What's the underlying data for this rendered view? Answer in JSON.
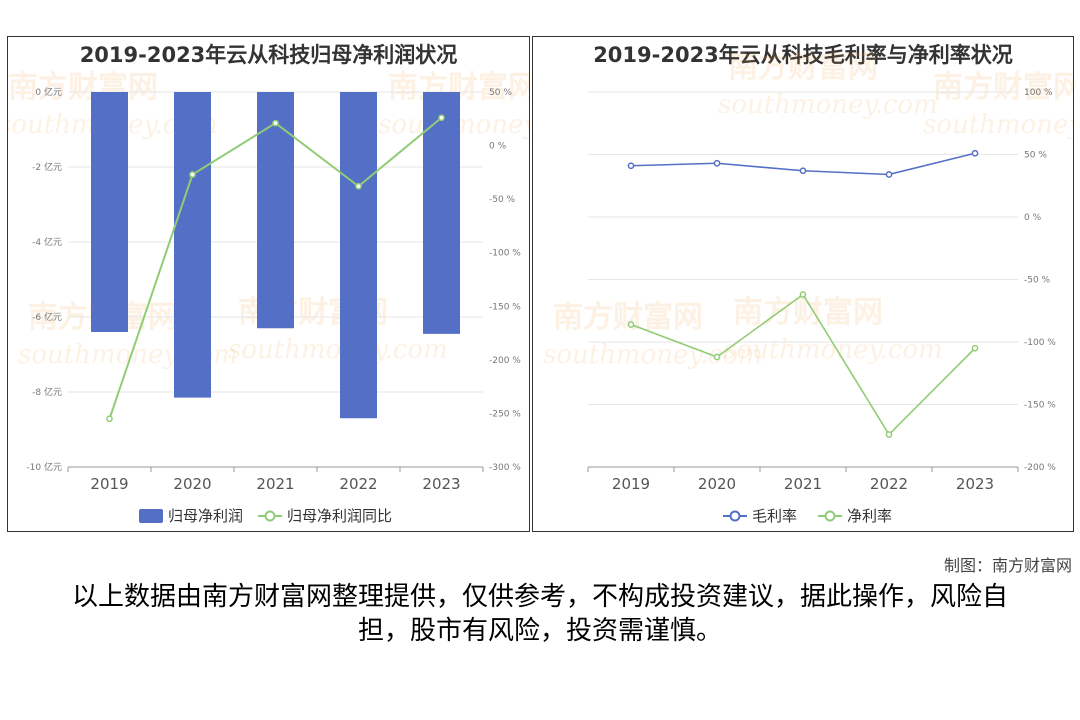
{
  "chart_data": [
    {
      "type": "bar",
      "title": "2019-2023年云从科技归母净利润状况",
      "categories": [
        "2019",
        "2020",
        "2021",
        "2022",
        "2023"
      ],
      "series": [
        {
          "name": "归母净利润",
          "type": "bar",
          "axis": "left",
          "values": [
            -6.4,
            -8.15,
            -6.3,
            -8.7,
            -6.45
          ]
        },
        {
          "name": "归母净利润同比",
          "type": "line",
          "axis": "right",
          "values": [
            -255,
            -27,
            21,
            -38,
            26
          ]
        }
      ],
      "y_left": {
        "min": -10,
        "max": 0,
        "step": 2,
        "tick_suffix": " 亿元"
      },
      "y_right": {
        "min": -300,
        "max": 50,
        "step": 50,
        "tick_suffix": " %"
      },
      "legend": "bottom",
      "grid": true,
      "colors": {
        "bar": "#5470c6",
        "line": "#91cc75"
      }
    },
    {
      "type": "line",
      "title": "2019-2023年云从科技毛利率与净利率状况",
      "categories": [
        "2019",
        "2020",
        "2021",
        "2022",
        "2023"
      ],
      "series": [
        {
          "name": "毛利率",
          "values": [
            41,
            43,
            37,
            34,
            51
          ]
        },
        {
          "name": "净利率",
          "values": [
            -86,
            -112,
            -62,
            -174,
            -105
          ]
        }
      ],
      "y_right": {
        "min": -200,
        "max": 100,
        "step": 50,
        "tick_suffix": " %"
      },
      "legend": "bottom",
      "grid": true,
      "colors": {
        "series1": "#5470c6",
        "series2": "#91cc75"
      }
    }
  ],
  "footer": {
    "credit": "制图：南方财富网",
    "disclaimer": "以上数据由南方财富网整理提供，仅供参考，不构成投资建议，据此操作，风险自担，股市有风险，投资需谨慎。"
  },
  "watermark": {
    "cn": "南方财富网",
    "en": "southmoney.com",
    "color": "#f3a24a"
  }
}
